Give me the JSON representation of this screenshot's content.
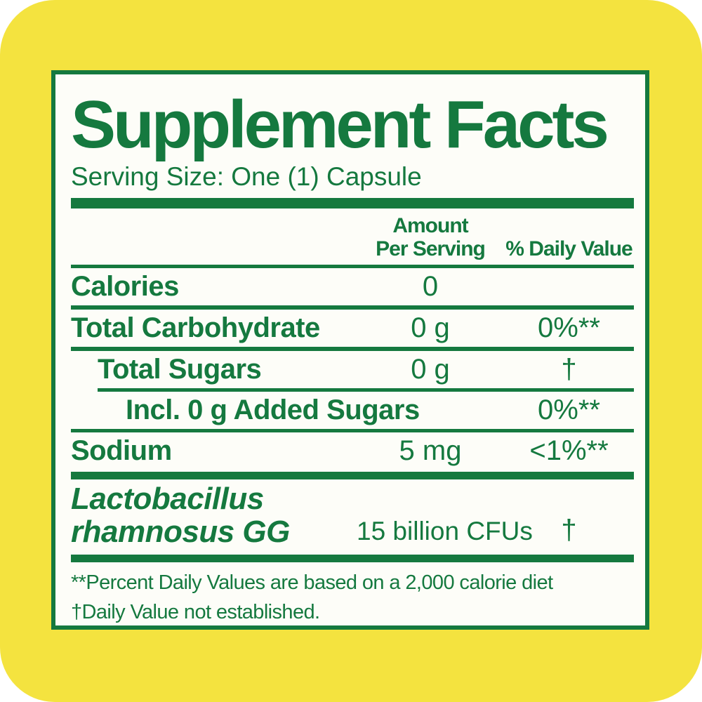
{
  "colors": {
    "green": "#15793F",
    "yellow": "#F4E33F",
    "panel_bg": "#FDFDF8"
  },
  "title": "Supplement Facts",
  "serving_size": "Serving Size: One (1) Capsule",
  "header": {
    "amount_line1": "Amount",
    "amount_line2": "Per Serving",
    "daily_value": "% Daily Value"
  },
  "rows": [
    {
      "name": "Calories",
      "amount": "0",
      "dv": ""
    },
    {
      "name": "Total Carbohydrate",
      "amount": "0 g",
      "dv": "0%**"
    },
    {
      "name": "Total Sugars",
      "amount": "0 g",
      "dv": "†"
    },
    {
      "name": "Incl. 0 g Added Sugars",
      "amount": "",
      "dv": "0%**"
    },
    {
      "name": "Sodium",
      "amount": "5 mg",
      "dv": "<1%**"
    }
  ],
  "probiotic": {
    "name_line1": "Lactobacillus",
    "name_line2": "rhamnosus GG",
    "amount": "15 billion CFUs",
    "dv": "†"
  },
  "footnotes": {
    "line1": "**Percent Daily Values are based on a 2,000 calorie diet",
    "line2": "†Daily Value not established."
  }
}
